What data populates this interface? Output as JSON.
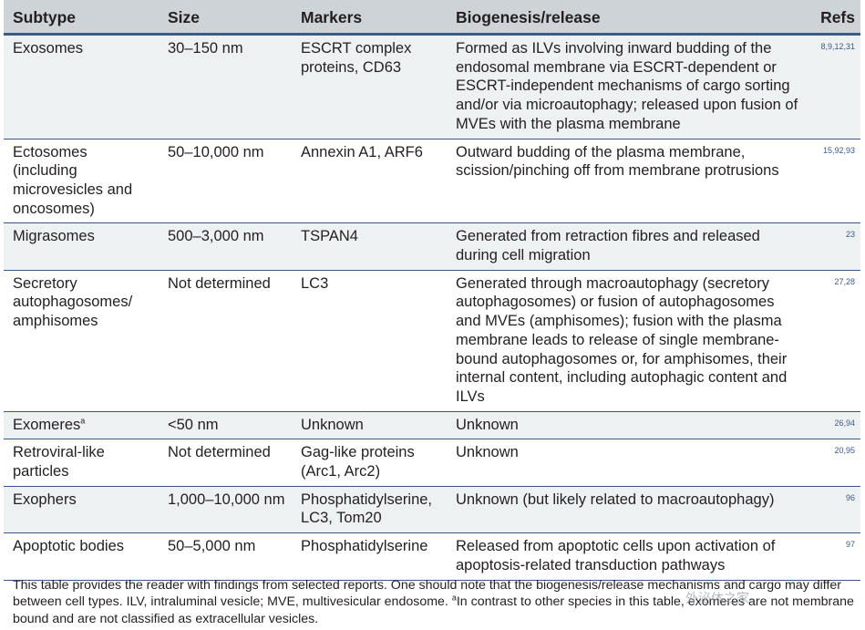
{
  "headers": [
    "Subtype",
    "Size",
    "Markers",
    "Biogenesis/release",
    "Refs"
  ],
  "rows": [
    {
      "subtype": "Exosomes",
      "size": "30–150 nm",
      "markers": "ESCRT complex proteins, CD63",
      "biogenesis": "Formed as ILVs involving inward budding of the endosomal membrane via ESCRT-dependent or ESCRT-independent mechanisms of cargo sorting and/or via microautophagy; released upon fusion of MVEs with the plasma membrane",
      "refs": "8,9,12,31"
    },
    {
      "subtype": "Ectosomes (including microvesicles and oncosomes)",
      "size": "50–10,000 nm",
      "markers": "Annexin A1, ARF6",
      "biogenesis": "Outward budding of the plasma membrane, scission/pinching off from membrane protrusions",
      "refs": "15,92,93"
    },
    {
      "subtype": "Migrasomes",
      "size": "500–3,000 nm",
      "markers": "TSPAN4",
      "biogenesis": "Generated from retraction fibres and released during cell migration",
      "refs": "23"
    },
    {
      "subtype": "Secretory autophagosomes/ amphisomes",
      "size": "Not determined",
      "markers": "LC3",
      "biogenesis": "Generated through macroautophagy (secretory autophagosomes) or fusion of autophagosomes and MVEs (amphisomes); fusion with the plasma membrane leads to release of single membrane-bound autophagosomes or, for amphisomes, their internal content, including autophagic content and ILVs",
      "refs": "27,28"
    },
    {
      "subtype": "Exomeres",
      "subtype_sup": "a",
      "size": "<50 nm",
      "markers": "Unknown",
      "biogenesis": "Unknown",
      "refs": "26,94"
    },
    {
      "subtype": "Retroviral-like particles",
      "size": "Not determined",
      "markers": "Gag-like proteins (Arc1, Arc2)",
      "biogenesis": "Unknown",
      "refs": "20,95"
    },
    {
      "subtype": "Exophers",
      "size": "1,000–10,000 nm",
      "markers": "Phosphatidylserine, LC3, Tom20",
      "biogenesis": "Unknown (but likely related to macroautophagy)",
      "refs": "96"
    },
    {
      "subtype": "Apoptotic bodies",
      "size": "50–5,000 nm",
      "markers": "Phosphatidylserine",
      "biogenesis": "Released from apoptotic cells upon activation of apoptosis-related transduction pathways",
      "refs": "97"
    }
  ],
  "footnote": {
    "main": "This table provides the reader with findings from selected reports. One should note that the biogenesis/release mechanisms and cargo may differ between cell types. ILV, intraluminal vesicle; MVE, multivesicular endosome.",
    "sup": "a",
    "rest": "In contrast to other species in this table, exomeres are not membrane bound and are not classified as extracellular vesicles."
  },
  "watermark": "外泌体之家",
  "colors": {
    "header_bg": "#cdd3d7",
    "rule": "#3b5a86",
    "stripe": "#eef1f2",
    "ref_text": "#3b5a86"
  }
}
